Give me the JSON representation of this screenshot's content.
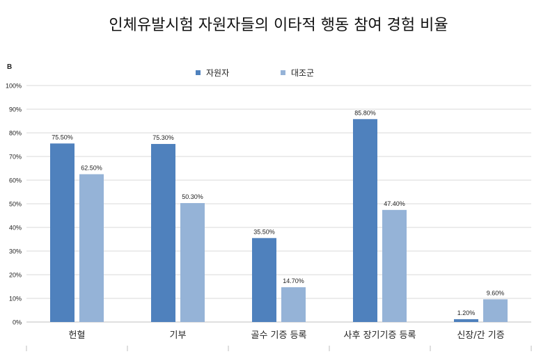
{
  "title": "인체유발시험 자원자들의 이타적 행동 참여 경험 비율",
  "panel_label": "B",
  "colors": {
    "series1": "#4f81bd",
    "series2": "#95b3d7",
    "grid": "#d9d9d9",
    "axis": "#bfbfbf"
  },
  "chart_data": {
    "type": "bar",
    "categories": [
      "헌혈",
      "기부",
      "골수 기증 등록",
      "사후 장기기증 등록",
      "신장/간 기증"
    ],
    "series": [
      {
        "name": "자원자",
        "values": [
          75.5,
          75.3,
          35.5,
          85.8,
          1.2
        ],
        "labels": [
          "75.50%",
          "75.30%",
          "35.50%",
          "85.80%",
          "1.20%"
        ]
      },
      {
        "name": "대조군",
        "values": [
          62.5,
          50.3,
          14.7,
          47.4,
          9.6
        ],
        "labels": [
          "62.50%",
          "50.30%",
          "14.70%",
          "47.40%",
          "9.60%"
        ]
      }
    ],
    "yticks": [
      "0%",
      "10%",
      "20%",
      "30%",
      "40%",
      "50%",
      "60%",
      "70%",
      "80%",
      "90%",
      "100%"
    ],
    "ylim": [
      0,
      100
    ],
    "grid": true,
    "legend": "top-center"
  }
}
